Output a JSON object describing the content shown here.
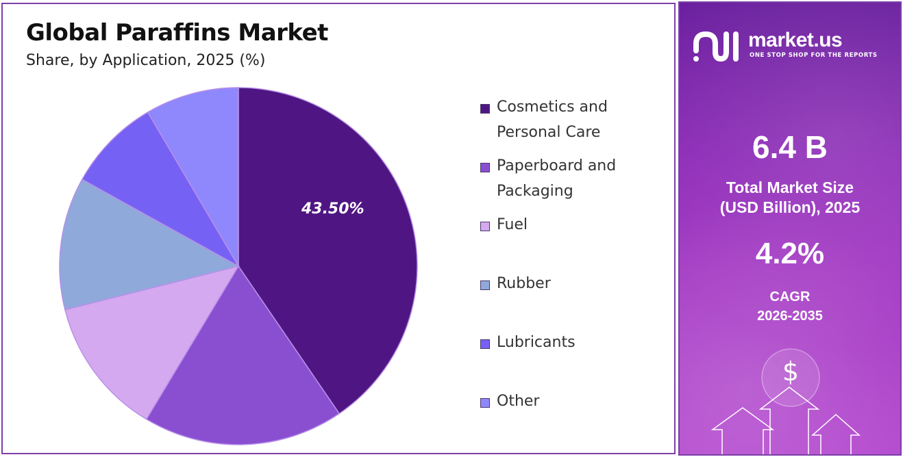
{
  "chart_data": {
    "type": "pie",
    "title": "Global Paraffins Market",
    "subtitle": "Share, by Application, 2025 (%)",
    "categories": [
      "Cosmetics and Personal Care",
      "Paperboard and Packaging",
      "Fuel",
      "Rubber",
      "Lubricants",
      "Other"
    ],
    "values": [
      43.5,
      19.5,
      13.4,
      12.9,
      9.1,
      9.1
    ],
    "colors": [
      "#4f1683",
      "#8a4fd1",
      "#d5a9ef",
      "#8fa9db",
      "#7661f5",
      "#8f87fc"
    ],
    "data_labels": [
      "43.50%",
      "",
      "",
      "",
      "",
      ""
    ],
    "legend_position": "right"
  },
  "legend": [
    {
      "label_line1": "Cosmetics and",
      "label_line2": "Personal Care"
    },
    {
      "label_line1": "Paperboard and",
      "label_line2": "Packaging"
    },
    {
      "label_line1": "Fuel",
      "label_line2": ""
    },
    {
      "label_line1": "Rubber",
      "label_line2": ""
    },
    {
      "label_line1": "Lubricants",
      "label_line2": ""
    },
    {
      "label_line1": "Other",
      "label_line2": ""
    }
  ],
  "brand": {
    "name": "market.us",
    "tagline": "ONE STOP SHOP FOR THE REPORTS"
  },
  "stats": {
    "market_size_value": "6.4 B",
    "market_size_label_line1": "Total Market Size",
    "market_size_label_line2": "(USD Billion), 2025",
    "cagr_value": "4.2%",
    "cagr_label_line1": "CAGR",
    "cagr_label_line2": "2026-2035"
  },
  "decor": {
    "currency_symbol": "$"
  }
}
